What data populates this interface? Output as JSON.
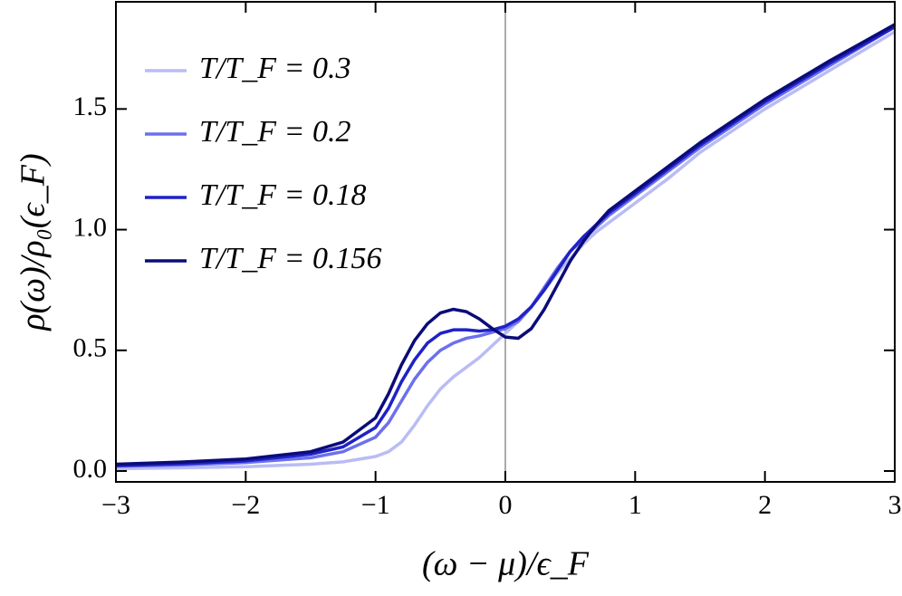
{
  "chart_data": {
    "type": "line",
    "x_label": "(ω − μ)/ϵ_F",
    "y_label": "ρ(ω)/ρ₀(ϵ_F)",
    "xlim": [
      -3,
      3
    ],
    "ylim": [
      -0.045,
      1.944
    ],
    "xticks": [
      {
        "value": -3,
        "label": "−3"
      },
      {
        "value": -2,
        "label": "−2"
      },
      {
        "value": -1,
        "label": "−1"
      },
      0,
      1,
      2,
      3
    ],
    "yticks": [
      {
        "value": 0,
        "label": "0.0"
      },
      0.5,
      {
        "value": 1,
        "label": "1.0"
      },
      1.5
    ],
    "legend": "upper left",
    "x": [
      -3,
      -2.5,
      -2,
      -1.5,
      -1.25,
      -1,
      -0.9,
      -0.8,
      -0.7,
      -0.6,
      -0.5,
      -0.4,
      -0.3,
      -0.2,
      -0.1,
      0,
      0.1,
      0.2,
      0.3,
      0.4,
      0.5,
      0.6,
      0.7,
      0.8,
      1,
      1.25,
      1.5,
      2,
      2.5,
      3
    ],
    "series": [
      {
        "name": "T/T_F = 0.3",
        "color": "#b9bcf4",
        "values": [
          0.01,
          0.013,
          0.018,
          0.028,
          0.038,
          0.06,
          0.08,
          0.12,
          0.19,
          0.27,
          0.34,
          0.39,
          0.43,
          0.47,
          0.52,
          0.57,
          0.62,
          0.68,
          0.75,
          0.82,
          0.88,
          0.94,
          0.99,
          1.03,
          1.11,
          1.21,
          1.32,
          1.5,
          1.66,
          1.82
        ]
      },
      {
        "name": "T/T_F = 0.2",
        "color": "#6b70ee",
        "values": [
          0.02,
          0.025,
          0.035,
          0.055,
          0.08,
          0.14,
          0.2,
          0.29,
          0.38,
          0.45,
          0.5,
          0.53,
          0.55,
          0.56,
          0.575,
          0.59,
          0.62,
          0.68,
          0.76,
          0.84,
          0.91,
          0.96,
          1.01,
          1.06,
          1.14,
          1.24,
          1.34,
          1.52,
          1.68,
          1.84
        ]
      },
      {
        "name": "T/T_F = 0.18",
        "color": "#1f22c6",
        "values": [
          0.022,
          0.03,
          0.042,
          0.07,
          0.1,
          0.18,
          0.26,
          0.37,
          0.46,
          0.53,
          0.57,
          0.585,
          0.585,
          0.58,
          0.585,
          0.6,
          0.63,
          0.68,
          0.75,
          0.83,
          0.91,
          0.97,
          1.02,
          1.07,
          1.15,
          1.25,
          1.35,
          1.53,
          1.69,
          1.84
        ]
      },
      {
        "name": "T/T_F = 0.156",
        "color": "#0b0b78",
        "values": [
          0.028,
          0.037,
          0.05,
          0.08,
          0.12,
          0.22,
          0.32,
          0.44,
          0.54,
          0.61,
          0.655,
          0.67,
          0.66,
          0.63,
          0.59,
          0.555,
          0.55,
          0.59,
          0.67,
          0.77,
          0.87,
          0.95,
          1.02,
          1.08,
          1.16,
          1.26,
          1.36,
          1.54,
          1.7,
          1.85
        ]
      }
    ]
  }
}
